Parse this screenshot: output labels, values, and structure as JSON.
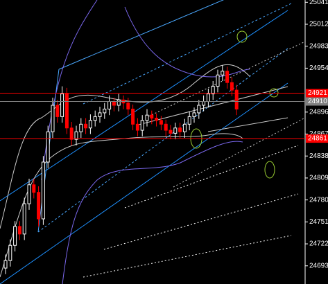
{
  "chart_data": {
    "type": "candlestick",
    "ylim": [
      24669,
      25044
    ],
    "yticks": [
      25041,
      25012,
      24983,
      24954,
      24896,
      24867,
      24838,
      24809,
      24780,
      24751,
      24722,
      24693
    ],
    "up_color": "#ffffff",
    "down_color": "#ff0000",
    "open": [
      24690,
      24700,
      24720,
      24745,
      24735,
      24775,
      24800,
      24790,
      24755,
      24830,
      24870,
      24905,
      24890,
      24920,
      24875,
      24860,
      24870,
      24880,
      24875,
      24885,
      24890,
      24895,
      24900,
      24910,
      24905,
      24912,
      24908,
      24900,
      24880,
      24872,
      24885,
      24892,
      24888,
      24885,
      24880,
      24872,
      24868,
      24875,
      24870,
      24880,
      24890,
      24895,
      24905,
      24910,
      24920,
      24930,
      24945,
      24950,
      24935,
      24925
    ],
    "high": [
      24708,
      24728,
      24752,
      24752,
      24783,
      24808,
      24808,
      24798,
      24838,
      24878,
      24915,
      24912,
      24930,
      24928,
      24883,
      24878,
      24888,
      24888,
      24893,
      24898,
      24903,
      24908,
      24918,
      24915,
      24920,
      24918,
      24915,
      24906,
      24888,
      24892,
      24900,
      24898,
      24894,
      24891,
      24886,
      24879,
      24882,
      24882,
      24887,
      24897,
      24902,
      24912,
      24918,
      24927,
      24937,
      24952,
      24958,
      24956,
      24942,
      24932
    ],
    "low": [
      24682,
      24692,
      24712,
      24727,
      24727,
      24767,
      24782,
      24745,
      24747,
      24822,
      24862,
      24882,
      24882,
      24867,
      24852,
      24852,
      24862,
      24867,
      24867,
      24877,
      24882,
      24887,
      24892,
      24897,
      24897,
      24900,
      24892,
      24872,
      24864,
      24864,
      24877,
      24880,
      24877,
      24872,
      24864,
      24860,
      24860,
      24862,
      24862,
      24872,
      24882,
      24887,
      24897,
      24902,
      24912,
      24922,
      24937,
      24927,
      24917,
      24892
    ],
    "close": [
      24700,
      24720,
      24745,
      24735,
      24775,
      24800,
      24790,
      24755,
      24830,
      24870,
      24905,
      24890,
      24920,
      24875,
      24860,
      24870,
      24880,
      24875,
      24885,
      24890,
      24895,
      24900,
      24910,
      24905,
      24912,
      24908,
      24900,
      24880,
      24872,
      24885,
      24892,
      24888,
      24885,
      24880,
      24872,
      24868,
      24875,
      24870,
      24880,
      24890,
      24895,
      24905,
      24910,
      24920,
      24930,
      24945,
      24950,
      24935,
      24925,
      24900
    ],
    "price_levels": [
      {
        "value": 24921,
        "color": "#ff0000"
      },
      {
        "value": 24910,
        "color": "#808080"
      },
      {
        "value": 24861,
        "color": "#ff0000"
      }
    ]
  }
}
